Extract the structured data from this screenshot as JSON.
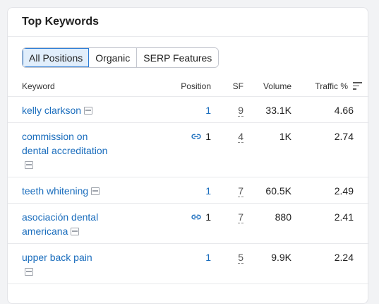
{
  "widget": {
    "title": "Top Keywords"
  },
  "tabs": [
    {
      "label": "All Positions",
      "active": true
    },
    {
      "label": "Organic",
      "active": false
    },
    {
      "label": "SERP Features",
      "active": false
    }
  ],
  "columns": {
    "keyword": "Keyword",
    "position": "Position",
    "sf": "SF",
    "volume": "Volume",
    "traffic": "Traffic %"
  },
  "rows": [
    {
      "keyword": "kelly clarkson",
      "link_icon": false,
      "position": "1",
      "sf": "9",
      "volume": "33.1K",
      "traffic": "4.66"
    },
    {
      "keyword": "commission on dental accreditation",
      "link_icon": true,
      "position": "1",
      "sf": "4",
      "volume": "1K",
      "traffic": "2.74"
    },
    {
      "keyword": "teeth whitening",
      "link_icon": false,
      "position": "1",
      "sf": "7",
      "volume": "60.5K",
      "traffic": "2.49"
    },
    {
      "keyword": "asociación dental americana",
      "link_icon": true,
      "position": "1",
      "sf": "7",
      "volume": "880",
      "traffic": "2.41"
    },
    {
      "keyword": "upper back pain",
      "link_icon": false,
      "position": "1",
      "sf": "5",
      "volume": "9.9K",
      "traffic": "2.24"
    }
  ],
  "icons": {
    "serp": "serp-snapshot-icon",
    "link": "link-icon",
    "sort": "sort-icon"
  },
  "colors": {
    "link": "#1a6dbd",
    "active_tab_bg": "#e1eefb",
    "active_tab_border": "#2a7bd4"
  }
}
